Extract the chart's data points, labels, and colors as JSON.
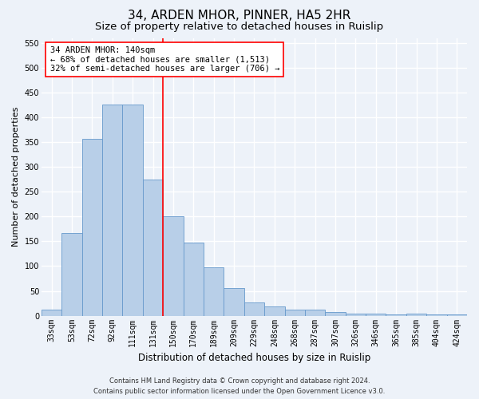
{
  "title": "34, ARDEN MHOR, PINNER, HA5 2HR",
  "subtitle": "Size of property relative to detached houses in Ruislip",
  "xlabel": "Distribution of detached houses by size in Ruislip",
  "ylabel": "Number of detached properties",
  "categories": [
    "33sqm",
    "53sqm",
    "72sqm",
    "92sqm",
    "111sqm",
    "131sqm",
    "150sqm",
    "170sqm",
    "189sqm",
    "209sqm",
    "229sqm",
    "248sqm",
    "268sqm",
    "287sqm",
    "307sqm",
    "326sqm",
    "346sqm",
    "365sqm",
    "385sqm",
    "404sqm",
    "424sqm"
  ],
  "values": [
    12,
    167,
    357,
    425,
    425,
    275,
    200,
    148,
    97,
    55,
    27,
    18,
    12,
    12,
    7,
    5,
    5,
    2,
    5,
    2,
    2
  ],
  "bar_color": "#b8cfe8",
  "bar_edge_color": "#6699cc",
  "vline_x": 5.5,
  "vline_color": "red",
  "annotation_text": "34 ARDEN MHOR: 140sqm\n← 68% of detached houses are smaller (1,513)\n32% of semi-detached houses are larger (706) →",
  "annotation_box_color": "white",
  "annotation_box_edge": "red",
  "ylim": [
    0,
    560
  ],
  "yticks": [
    0,
    50,
    100,
    150,
    200,
    250,
    300,
    350,
    400,
    450,
    500,
    550
  ],
  "footer_line1": "Contains HM Land Registry data © Crown copyright and database right 2024.",
  "footer_line2": "Contains public sector information licensed under the Open Government Licence v3.0.",
  "background_color": "#edf2f9",
  "grid_color": "#ffffff",
  "title_fontsize": 11,
  "subtitle_fontsize": 9.5,
  "ylabel_fontsize": 8,
  "xlabel_fontsize": 8.5,
  "tick_fontsize": 7,
  "annotation_fontsize": 7.5,
  "footer_fontsize": 6
}
